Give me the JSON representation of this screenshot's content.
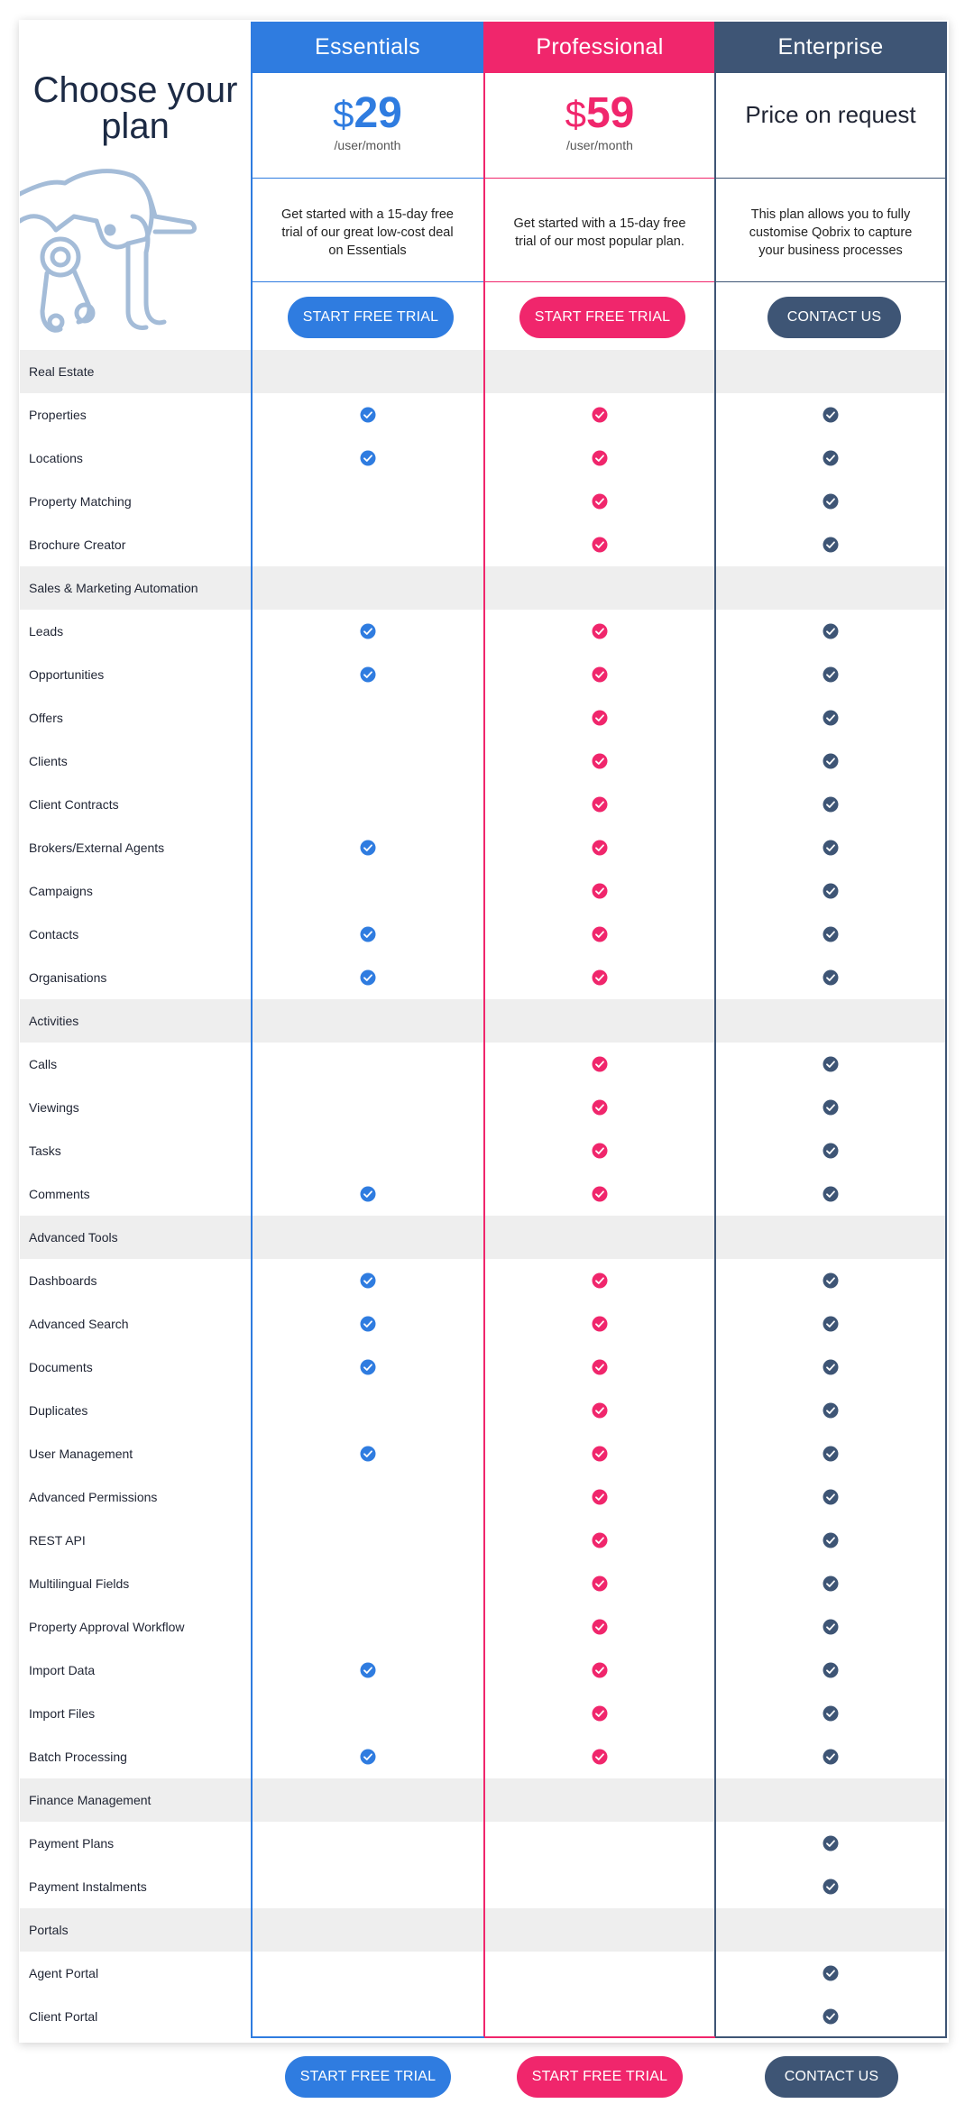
{
  "title": "Choose your plan",
  "colors": {
    "essentials": "#2f7ce0",
    "professional": "#f0266c",
    "enterprise": "#3e5575",
    "category_bg": "#eeeeee"
  },
  "plans": {
    "essentials": {
      "name": "Essentials",
      "currency": "$",
      "price": "29",
      "period": "/user/month",
      "description": "Get started with a 15-day free trial of our great low-cost deal on Essentials",
      "button": "START FREE TRIAL"
    },
    "professional": {
      "name": "Professional",
      "currency": "$",
      "price": "59",
      "period": "/user/month",
      "description": "Get started with a 15-day free trial of our most popular plan.",
      "button": "START FREE TRIAL"
    },
    "enterprise": {
      "name": "Enterprise",
      "price_text": "Price on request",
      "description": "This plan allows you to fully customise Qobrix to capture your business processes",
      "button": "CONTACT US"
    }
  },
  "features": [
    {
      "label": "Real Estate",
      "category": true
    },
    {
      "label": "Properties",
      "e": true,
      "p": true,
      "n": true
    },
    {
      "label": "Locations",
      "e": true,
      "p": true,
      "n": true
    },
    {
      "label": "Property Matching",
      "e": false,
      "p": true,
      "n": true
    },
    {
      "label": "Brochure Creator",
      "e": false,
      "p": true,
      "n": true
    },
    {
      "label": "Sales & Marketing Automation",
      "category": true
    },
    {
      "label": "Leads",
      "e": true,
      "p": true,
      "n": true
    },
    {
      "label": "Opportunities",
      "e": true,
      "p": true,
      "n": true
    },
    {
      "label": "Offers",
      "e": false,
      "p": true,
      "n": true
    },
    {
      "label": "Clients",
      "e": false,
      "p": true,
      "n": true
    },
    {
      "label": "Client Contracts",
      "e": false,
      "p": true,
      "n": true
    },
    {
      "label": "Brokers/External Agents",
      "e": true,
      "p": true,
      "n": true
    },
    {
      "label": "Campaigns",
      "e": false,
      "p": true,
      "n": true
    },
    {
      "label": "Contacts",
      "e": true,
      "p": true,
      "n": true
    },
    {
      "label": "Organisations",
      "e": true,
      "p": true,
      "n": true
    },
    {
      "label": "Activities",
      "category": true
    },
    {
      "label": "Calls",
      "e": false,
      "p": true,
      "n": true
    },
    {
      "label": "Viewings",
      "e": false,
      "p": true,
      "n": true
    },
    {
      "label": "Tasks",
      "e": false,
      "p": true,
      "n": true
    },
    {
      "label": "Comments",
      "e": true,
      "p": true,
      "n": true
    },
    {
      "label": "Advanced Tools",
      "category": true
    },
    {
      "label": "Dashboards",
      "e": true,
      "p": true,
      "n": true
    },
    {
      "label": "Advanced Search",
      "e": true,
      "p": true,
      "n": true
    },
    {
      "label": "Documents",
      "e": true,
      "p": true,
      "n": true
    },
    {
      "label": "Duplicates",
      "e": false,
      "p": true,
      "n": true
    },
    {
      "label": "User Management",
      "e": true,
      "p": true,
      "n": true
    },
    {
      "label": "Advanced Permissions",
      "e": false,
      "p": true,
      "n": true
    },
    {
      "label": "REST API",
      "e": false,
      "p": true,
      "n": true
    },
    {
      "label": "Multilingual Fields",
      "e": false,
      "p": true,
      "n": true
    },
    {
      "label": "Property Approval Workflow",
      "e": false,
      "p": true,
      "n": true
    },
    {
      "label": "Import Data",
      "e": true,
      "p": true,
      "n": true
    },
    {
      "label": "Import Files",
      "e": false,
      "p": true,
      "n": true
    },
    {
      "label": "Batch Processing",
      "e": true,
      "p": true,
      "n": true
    },
    {
      "label": "Finance Management",
      "category": true
    },
    {
      "label": "Payment Plans",
      "e": false,
      "p": false,
      "n": true
    },
    {
      "label": "Payment Instalments",
      "e": false,
      "p": false,
      "n": true
    },
    {
      "label": "Portals",
      "category": true
    },
    {
      "label": "Agent Portal",
      "e": false,
      "p": false,
      "n": true
    },
    {
      "label": "Client Portal",
      "e": false,
      "p": false,
      "n": true
    }
  ],
  "footer": {
    "essentials_button": "START FREE TRIAL",
    "professional_button": "START FREE TRIAL",
    "enterprise_button": "CONTACT US"
  }
}
